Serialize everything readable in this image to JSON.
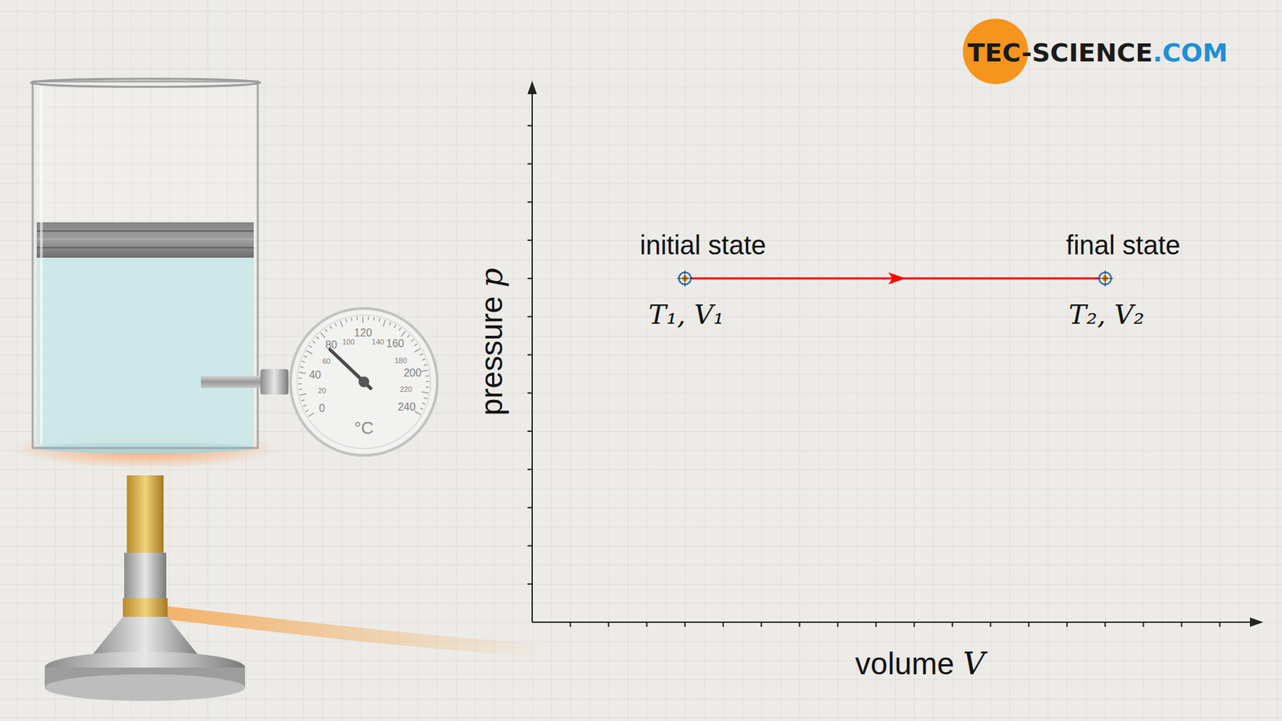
{
  "chart_data": {
    "type": "line",
    "x": [
      4,
      15
    ],
    "values": [
      9,
      9
    ],
    "color": "#ff0000",
    "marker": "circle",
    "xlim": [
      0,
      19
    ],
    "ylim": [
      0,
      14
    ],
    "xticks": [
      1,
      2,
      3,
      4,
      5,
      6,
      7,
      8,
      9,
      10,
      11,
      12,
      13,
      14,
      15,
      16,
      17,
      18
    ],
    "yticks": [
      1,
      2,
      3,
      4,
      5,
      6,
      7,
      8,
      9,
      10,
      11,
      12,
      13
    ],
    "tick_labels": false,
    "grid": false,
    "xlabel": "volume V",
    "ylabel": "pressure p",
    "point_labels": [
      "initial state",
      "final state"
    ],
    "point_sublabels": [
      "T₁, V₁",
      "T₂, V₂"
    ]
  },
  "illustration": {
    "thermometer": {
      "unit": "°C",
      "scale": [
        0,
        20,
        40,
        60,
        80,
        100,
        120,
        140,
        160,
        180,
        200,
        220,
        240
      ],
      "reading": 75
    }
  },
  "logo": {
    "text": [
      "TEC-SCIENCE",
      ".COM"
    ]
  }
}
